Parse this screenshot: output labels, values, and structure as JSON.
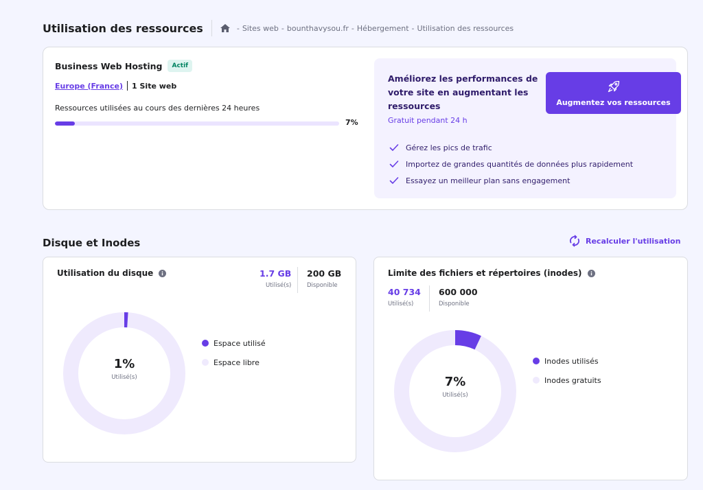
{
  "header": {
    "title": "Utilisation des ressources",
    "breadcrumb": [
      "Sites web",
      "bounthavysou.fr",
      "Hébergement",
      "Utilisation des ressources"
    ]
  },
  "hosting": {
    "plan_name": "Business Web Hosting",
    "status": "Actif",
    "location": "Europe (France)",
    "site_count": "1 Site web",
    "usage_label": "Ressources utilisées au cours des dernières 24 heures",
    "usage_percent": 7,
    "usage_percent_label": "7%"
  },
  "upsell": {
    "title": "Améliorez les performances de votre site en augmentant les ressources",
    "subtitle": "Gratuit pendant 24 h",
    "button_label": "Augmentez vos ressources",
    "features": [
      "Gérez les pics de trafic",
      "Importez de grandes quantités de données plus rapidement",
      "Essayez un meilleur plan sans engagement"
    ]
  },
  "disk_section": {
    "title": "Disque et Inodes",
    "recalc_label": "Recalculer l'utilisation"
  },
  "disk": {
    "title": "Utilisation du disque",
    "used_value": "1.7 GB",
    "used_label": "Utilisé(s)",
    "available_value": "200 GB",
    "available_label": "Disponible",
    "percent": 1,
    "percent_label": "1%",
    "center_sub": "Utilisé(s)",
    "legend": [
      "Espace utilisé",
      "Espace libre"
    ]
  },
  "inodes": {
    "title": "Limite des fichiers et répertoires (inodes)",
    "used_value": "40 734",
    "used_label": "Utilisé(s)",
    "available_value": "600 000",
    "available_label": "Disponible",
    "percent": 7,
    "percent_label": "7%",
    "center_sub": "Utilisé(s)",
    "legend": [
      "Inodes utilisés",
      "Inodes gratuits"
    ]
  },
  "colors": {
    "accent": "#673de6",
    "track": "#efeafd",
    "success": "#008361",
    "background": "#f4f5ff"
  }
}
